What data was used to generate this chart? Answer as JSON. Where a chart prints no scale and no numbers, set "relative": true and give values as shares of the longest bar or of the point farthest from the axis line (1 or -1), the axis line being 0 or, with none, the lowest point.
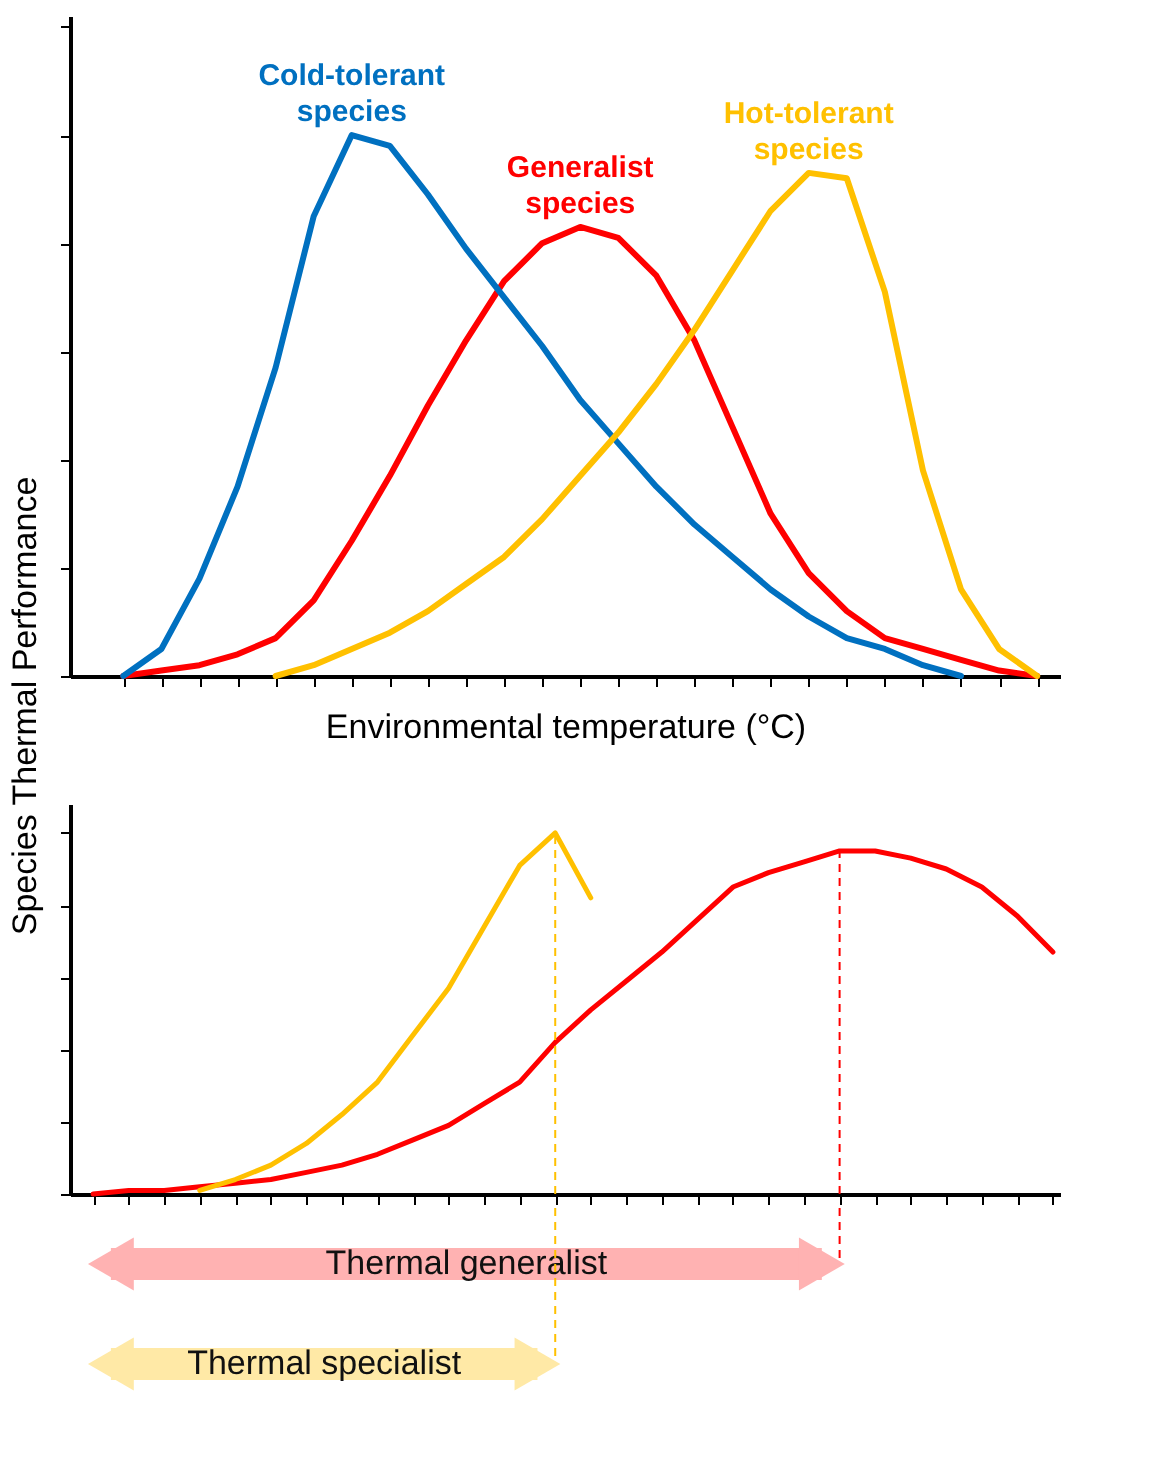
{
  "chart_data": [
    {
      "type": "line",
      "relative": true,
      "marker": "none",
      "line_style": "solid",
      "ylabel": "Species Thermal Performance",
      "xlabel": "Environmental temperature (°C)",
      "categories": [
        null,
        null,
        null,
        null,
        null,
        null,
        null,
        null,
        null,
        null,
        null,
        null,
        null,
        null,
        null,
        null,
        null,
        null,
        null,
        null,
        null,
        null,
        null,
        null,
        null
      ],
      "series": [
        {
          "name": "Generalist species",
          "color": "#ff0000",
          "values": [
            0,
            0.01,
            0.02,
            0.04,
            0.07,
            0.14,
            0.25,
            0.37,
            0.5,
            0.62,
            0.73,
            0.8,
            0.83,
            0.81,
            0.74,
            0.62,
            0.46,
            0.3,
            0.19,
            0.12,
            0.07,
            0.05,
            0.03,
            0.01,
            0
          ]
        },
        {
          "name": "Cold-tolerant species",
          "color": "#0070c0",
          "values": [
            0,
            0.05,
            0.18,
            0.35,
            0.57,
            0.85,
            1,
            0.98,
            0.89,
            0.79,
            0.7,
            0.61,
            0.51,
            0.43,
            0.35,
            0.28,
            0.22,
            0.16,
            0.11,
            0.07,
            0.05,
            0.02,
            0,
            null,
            null
          ]
        },
        {
          "name": "Hot-tolerant species",
          "color": "#ffc000",
          "values": [
            null,
            null,
            null,
            null,
            0,
            0.02,
            0.05,
            0.08,
            0.12,
            0.17,
            0.22,
            0.29,
            0.37,
            0.45,
            0.54,
            0.64,
            0.75,
            0.86,
            0.93,
            0.92,
            0.71,
            0.38,
            0.16,
            0.05,
            0
          ]
        }
      ]
    },
    {
      "type": "line",
      "relative": true,
      "marker": "none",
      "line_style": "solid",
      "categories": [
        null,
        null,
        null,
        null,
        null,
        null,
        null,
        null,
        null,
        null,
        null,
        null,
        null,
        null,
        null,
        null,
        null,
        null,
        null,
        null,
        null,
        null,
        null,
        null,
        null,
        null,
        null,
        null
      ],
      "series": [
        {
          "color": "#ff0000",
          "values": [
            0,
            0.01,
            0.01,
            0.02,
            0.03,
            0.04,
            0.06,
            0.08,
            0.11,
            0.15,
            0.19,
            0.25,
            0.31,
            0.42,
            0.51,
            0.59,
            0.67,
            0.76,
            0.85,
            0.89,
            0.92,
            0.95,
            0.95,
            0.93,
            0.9,
            0.85,
            0.77,
            0.67
          ]
        },
        {
          "color": "#ffc000",
          "values": [
            null,
            null,
            null,
            0.01,
            0.04,
            0.08,
            0.14,
            0.22,
            0.31,
            0.44,
            0.57,
            0.74,
            0.91,
            1,
            0.82,
            null,
            null,
            null,
            null,
            null,
            null,
            null,
            null,
            null,
            null,
            null,
            null,
            null
          ]
        }
      ],
      "annotations": [
        "Thermal generalist",
        "Thermal specialist"
      ]
    }
  ]
}
